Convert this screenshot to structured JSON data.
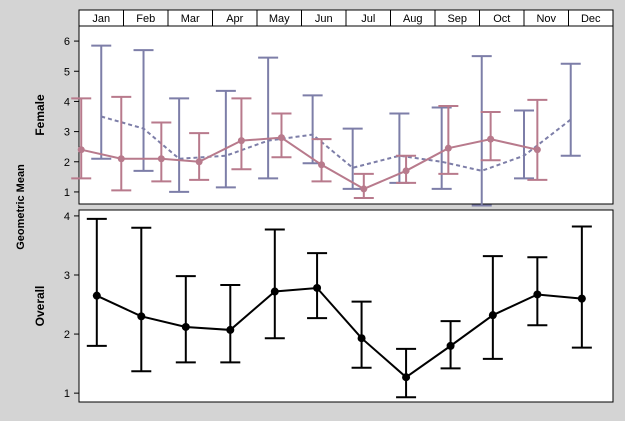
{
  "chart_data": [
    {
      "type": "line",
      "panel_label": "Female",
      "ylabel": "Geometric Mean",
      "categories": [
        "Jan",
        "Feb",
        "Mar",
        "Apr",
        "May",
        "Jun",
        "Jul",
        "Aug",
        "Sep",
        "Oct",
        "Nov",
        "Dec"
      ],
      "x_positions": [
        1,
        2,
        3,
        4,
        5,
        6,
        7,
        8,
        9,
        10,
        11,
        12
      ],
      "ylim": [
        0.6,
        6.5
      ],
      "yticks": [
        1,
        2,
        3,
        4,
        5,
        6
      ],
      "grid": false,
      "series": [
        {
          "style": "dashed",
          "color": "#7d7ea8",
          "x": [
            1.0,
            1.95,
            2.75,
            3.8,
            4.75,
            5.75,
            6.65,
            7.7,
            8.65,
            9.55,
            10.5,
            11.55
          ],
          "values": [
            3.5,
            3.1,
            2.1,
            2.2,
            2.7,
            2.9,
            1.8,
            2.2,
            2.0,
            1.7,
            2.2,
            3.4
          ],
          "lower": [
            2.1,
            1.7,
            1.0,
            1.15,
            1.45,
            1.95,
            1.1,
            1.3,
            1.1,
            0.55,
            1.45,
            2.2
          ],
          "upper": [
            5.85,
            5.7,
            4.1,
            4.35,
            5.45,
            4.2,
            3.1,
            3.6,
            3.8,
            5.5,
            3.7,
            5.25
          ]
        },
        {
          "style": "solid",
          "color": "#b87a8c",
          "x": [
            0.55,
            1.45,
            2.35,
            3.2,
            4.15,
            5.05,
            5.95,
            6.9,
            7.85,
            8.8,
            9.75,
            10.8
          ],
          "values": [
            2.4,
            2.1,
            2.1,
            2.0,
            2.7,
            2.8,
            1.9,
            1.1,
            1.7,
            2.45,
            2.75,
            2.4
          ],
          "lower": [
            1.45,
            1.05,
            1.35,
            1.4,
            1.75,
            2.15,
            1.35,
            0.8,
            1.3,
            1.6,
            2.05,
            1.4
          ],
          "upper": [
            4.1,
            4.15,
            3.3,
            2.95,
            4.1,
            3.6,
            2.75,
            1.6,
            2.2,
            3.85,
            3.65,
            4.05
          ]
        }
      ]
    },
    {
      "type": "line",
      "panel_label": "Overall",
      "ylabel": "Geometric Mean",
      "categories": [
        "Jan",
        "Feb",
        "Mar",
        "Apr",
        "May",
        "Jun",
        "Jul",
        "Aug",
        "Sep",
        "Oct",
        "Nov",
        "Dec"
      ],
      "x_positions": [
        1,
        2,
        3,
        4,
        5,
        6,
        7,
        8,
        9,
        10,
        11,
        12
      ],
      "ylim": [
        0.85,
        4.1
      ],
      "yticks": [
        1,
        2,
        3,
        4
      ],
      "grid": false,
      "series": [
        {
          "style": "solid",
          "color": "#000000",
          "x": [
            0.9,
            1.9,
            2.9,
            3.9,
            4.9,
            5.85,
            6.85,
            7.85,
            8.85,
            9.8,
            10.8,
            11.8
          ],
          "values": [
            2.65,
            2.3,
            2.12,
            2.07,
            2.72,
            2.78,
            1.93,
            1.27,
            1.8,
            2.32,
            2.67,
            2.6
          ],
          "lower": [
            1.8,
            1.37,
            1.52,
            1.52,
            1.93,
            2.27,
            1.43,
            0.93,
            1.42,
            1.58,
            2.15,
            1.77
          ],
          "upper": [
            3.95,
            3.8,
            2.98,
            2.83,
            3.77,
            3.37,
            2.55,
            1.75,
            2.22,
            3.32,
            3.3,
            3.82
          ]
        }
      ]
    }
  ]
}
